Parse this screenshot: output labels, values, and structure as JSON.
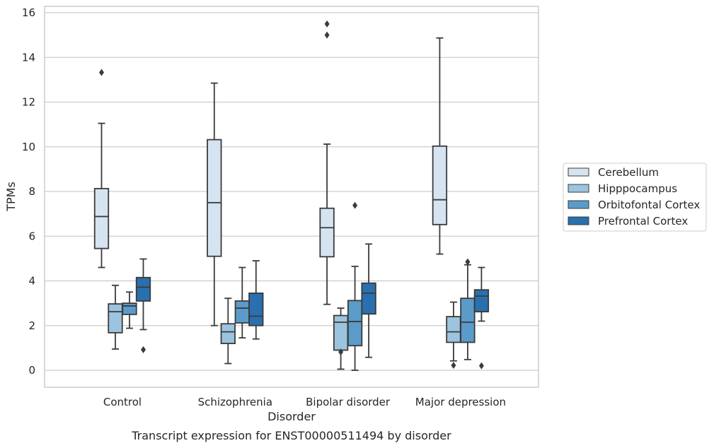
{
  "chart_data": {
    "type": "box",
    "xlabel": "Disorder",
    "ylabel": "TPMs",
    "caption": "Transcript expression for ENST00000511494 by disorder",
    "categories": [
      "Control",
      "Schizophrenia",
      "Bipolar disorder",
      "Major depression"
    ],
    "ylim": [
      -0.75,
      16.3
    ],
    "yticks": [
      0,
      2,
      4,
      6,
      8,
      10,
      12,
      14,
      16
    ],
    "grid": "horizontal",
    "legend_position": "right",
    "series": [
      {
        "name": "Cerebellum",
        "color": "#d6e3f1",
        "boxes": [
          {
            "whislo": 4.6,
            "q1": 5.45,
            "med": 6.88,
            "q3": 8.13,
            "whishi": 11.05,
            "fliers": [
              13.33
            ]
          },
          {
            "whislo": 2.0,
            "q1": 5.1,
            "med": 7.5,
            "q3": 10.32,
            "whishi": 12.85,
            "fliers": []
          },
          {
            "whislo": 2.95,
            "q1": 5.08,
            "med": 6.38,
            "q3": 7.25,
            "whishi": 10.12,
            "fliers": [
              15.0,
              15.5
            ]
          },
          {
            "whislo": 5.2,
            "q1": 6.52,
            "med": 7.63,
            "q3": 10.03,
            "whishi": 14.87,
            "fliers": []
          }
        ]
      },
      {
        "name": "Hipppocampus",
        "color": "#9cc4de",
        "boxes": [
          {
            "whislo": 0.95,
            "q1": 1.68,
            "med": 2.62,
            "q3": 2.97,
            "whishi": 3.8,
            "fliers": []
          },
          {
            "whislo": 0.3,
            "q1": 1.2,
            "med": 1.72,
            "q3": 2.08,
            "whishi": 3.22,
            "fliers": []
          },
          {
            "whislo": 0.05,
            "q1": 0.9,
            "med": 2.15,
            "q3": 2.45,
            "whishi": 2.78,
            "fliers": [
              0.82
            ]
          },
          {
            "whislo": 0.42,
            "q1": 1.25,
            "med": 1.72,
            "q3": 2.4,
            "whishi": 3.05,
            "fliers": [
              0.22
            ]
          }
        ]
      },
      {
        "name": "Orbitofontal Cortex",
        "color": "#5b9bc9",
        "boxes": [
          {
            "whislo": 1.88,
            "q1": 2.5,
            "med": 2.88,
            "q3": 3.0,
            "whishi": 3.5,
            "fliers": []
          },
          {
            "whislo": 1.45,
            "q1": 2.12,
            "med": 2.78,
            "q3": 3.1,
            "whishi": 4.6,
            "fliers": []
          },
          {
            "whislo": 0.0,
            "q1": 1.1,
            "med": 2.18,
            "q3": 3.12,
            "whishi": 4.65,
            "fliers": [
              7.38
            ]
          },
          {
            "whislo": 0.48,
            "q1": 1.25,
            "med": 2.15,
            "q3": 3.22,
            "whishi": 4.72,
            "fliers": [
              4.85
            ]
          }
        ]
      },
      {
        "name": "Prefrontal Cortex",
        "color": "#2a6fae",
        "boxes": [
          {
            "whislo": 1.82,
            "q1": 3.1,
            "med": 3.72,
            "q3": 4.15,
            "whishi": 4.98,
            "fliers": [
              0.92
            ]
          },
          {
            "whislo": 1.4,
            "q1": 2.0,
            "med": 2.42,
            "q3": 3.45,
            "whishi": 4.9,
            "fliers": []
          },
          {
            "whislo": 0.58,
            "q1": 2.52,
            "med": 3.45,
            "q3": 3.9,
            "whishi": 5.65,
            "fliers": []
          },
          {
            "whislo": 2.2,
            "q1": 2.62,
            "med": 3.32,
            "q3": 3.6,
            "whishi": 4.6,
            "fliers": [
              0.2
            ]
          }
        ]
      }
    ]
  }
}
